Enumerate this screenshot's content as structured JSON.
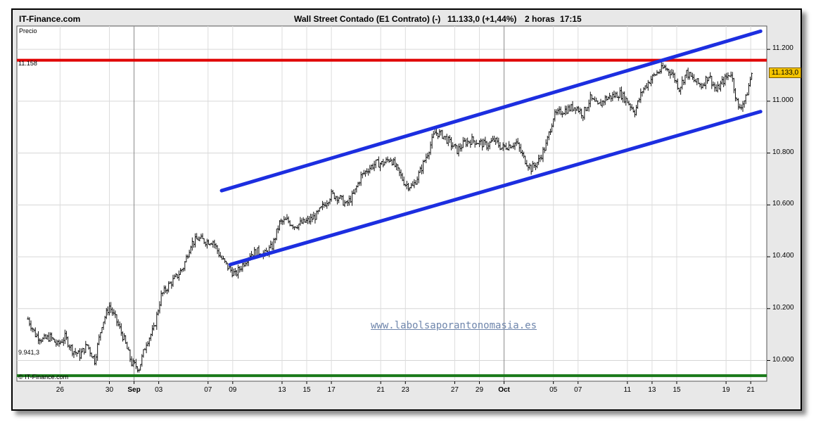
{
  "header": {
    "brand": "IT-Finance.com",
    "instrument": "Wall Street Contado (E1 Contrato) (-)",
    "last_change": "11.133,0 (+1,44%)",
    "timeframe": "2 horas",
    "time": "17:15"
  },
  "watermark": "www.labolsaporantonomasia.es",
  "copyright": "© IT-Finance.com",
  "colors": {
    "resistance": "#e00000",
    "support": "#1a7a1a",
    "channel": "#1c2ee0",
    "price_bars": "#111111",
    "last_price_badge": "#f4c400"
  },
  "chart_data": {
    "type": "line",
    "ylabel": "Precio",
    "ylim": [
      9920,
      11290
    ],
    "y_ticks": [
      {
        "value": 10000,
        "label": "10.000"
      },
      {
        "value": 10200,
        "label": "10.200"
      },
      {
        "value": 10400,
        "label": "10.400"
      },
      {
        "value": 10600,
        "label": "10.600"
      },
      {
        "value": 10800,
        "label": "10.800"
      },
      {
        "value": 11000,
        "label": "11.000"
      },
      {
        "value": 11200,
        "label": "11.200"
      }
    ],
    "x_ticks": [
      {
        "label": "26",
        "day": 26
      },
      {
        "label": "30",
        "day": 30
      },
      {
        "label": "Sep",
        "day": 32,
        "month": true
      },
      {
        "label": "03",
        "day": 34
      },
      {
        "label": "07",
        "day": 38
      },
      {
        "label": "09",
        "day": 40
      },
      {
        "label": "13",
        "day": 44
      },
      {
        "label": "15",
        "day": 46
      },
      {
        "label": "17",
        "day": 48
      },
      {
        "label": "21",
        "day": 52
      },
      {
        "label": "23",
        "day": 54
      },
      {
        "label": "27",
        "day": 58
      },
      {
        "label": "29",
        "day": 60
      },
      {
        "label": "Oct",
        "day": 62,
        "month": true
      },
      {
        "label": "05",
        "day": 66
      },
      {
        "label": "07",
        "day": 68
      },
      {
        "label": "11",
        "day": 72
      },
      {
        "label": "13",
        "day": 74
      },
      {
        "label": "15",
        "day": 76
      },
      {
        "label": "19",
        "day": 80
      },
      {
        "label": "21",
        "day": 82
      }
    ],
    "horizontal_lines": [
      {
        "value": 11158,
        "label": "11.158",
        "color": "resistance"
      },
      {
        "value": 9941.3,
        "label": "9.941,3",
        "color": "support"
      }
    ],
    "trend_lines": [
      {
        "from": [
          39.1,
          10655
        ],
        "to": [
          82.8,
          11270
        ],
        "color": "channel"
      },
      {
        "from": [
          39.8,
          10370
        ],
        "to": [
          82.8,
          10960
        ],
        "color": "channel"
      }
    ],
    "last_price": {
      "value": 11133.0,
      "label": "11.133,0"
    },
    "series": [
      {
        "x": [
          23.4,
          24.0,
          24.6,
          25.2,
          25.8,
          26.4,
          27.0,
          27.6,
          28.2,
          28.8,
          29.4,
          30.0,
          30.6,
          31.2,
          31.8,
          32.4,
          33.0,
          33.6,
          34.2,
          34.8,
          35.4,
          36.0,
          36.6,
          37.2,
          37.8,
          38.4,
          39.0,
          39.6,
          40.2,
          40.8,
          41.4,
          42.0,
          42.6,
          43.2,
          43.8,
          44.4,
          45.0,
          45.6,
          46.2,
          46.8,
          47.4,
          48.0,
          48.6,
          49.2,
          49.8,
          50.4,
          51.0,
          51.6,
          52.2,
          52.8,
          53.4,
          54.0,
          54.6,
          55.2,
          55.8,
          56.4,
          57.0,
          57.6,
          58.2,
          58.8,
          59.4,
          60.0,
          60.6,
          61.2,
          61.8,
          62.4,
          63.0,
          63.6,
          64.2,
          64.8,
          65.4,
          66.0,
          66.6,
          67.2,
          67.8,
          68.4,
          69.0,
          69.6,
          70.2,
          70.8,
          71.4,
          72.0,
          72.6,
          73.2,
          73.8,
          74.4,
          75.0,
          75.6,
          76.2,
          76.8,
          77.4,
          78.0,
          78.6,
          79.2,
          79.8,
          80.4,
          81.0,
          81.6,
          82.2
        ],
        "y": [
          10160,
          10100,
          10080,
          10090,
          10060,
          10090,
          10040,
          10020,
          10060,
          10000,
          10140,
          10210,
          10150,
          10080,
          9990,
          9970,
          10070,
          10120,
          10250,
          10290,
          10320,
          10360,
          10450,
          10470,
          10460,
          10460,
          10400,
          10360,
          10330,
          10370,
          10410,
          10420,
          10410,
          10440,
          10530,
          10540,
          10520,
          10530,
          10540,
          10560,
          10600,
          10640,
          10630,
          10600,
          10640,
          10710,
          10740,
          10760,
          10760,
          10780,
          10730,
          10680,
          10670,
          10730,
          10800,
          10880,
          10870,
          10840,
          10810,
          10840,
          10850,
          10840,
          10830,
          10850,
          10820,
          10830,
          10840,
          10780,
          10740,
          10770,
          10830,
          10940,
          10960,
          10970,
          10980,
          10950,
          11010,
          10980,
          11010,
          11020,
          11030,
          11000,
          10960,
          11040,
          11080,
          11110,
          11130,
          11110,
          11050,
          11110,
          11080,
          11060,
          11100,
          11040,
          11080,
          11110,
          10970,
          11010,
          11133
        ]
      }
    ]
  }
}
